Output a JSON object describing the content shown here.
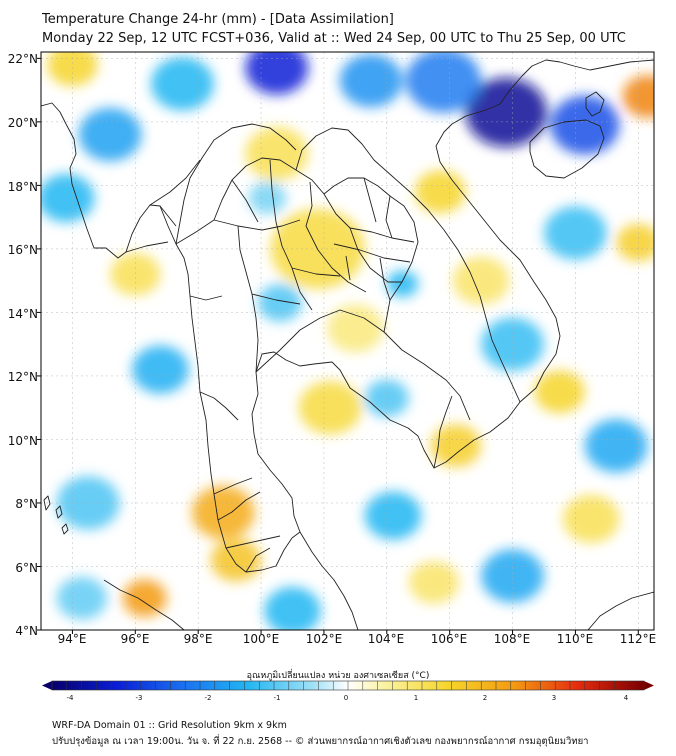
{
  "header": {
    "title_line1": "Temperature Change 24-hr (mm) - [Data Assimilation]",
    "title_line2": "Monday 22 Sep, 12 UTC FCST+036, Valid at :: Wed 24 Sep, 00 UTC to Thu 25 Sep, 00 UTC"
  },
  "map": {
    "lat_labels": [
      "22°N",
      "20°N",
      "18°N",
      "16°N",
      "14°N",
      "12°N",
      "10°N",
      "8°N",
      "6°N",
      "4°N"
    ],
    "lon_labels": [
      "94°E",
      "96°E",
      "98°E",
      "100°E",
      "102°E",
      "104°E",
      "106°E",
      "108°E",
      "110°E",
      "112°E"
    ],
    "lat_values": [
      22,
      20,
      18,
      16,
      14,
      12,
      10,
      8,
      6,
      4
    ],
    "lon_values": [
      94,
      96,
      98,
      100,
      102,
      104,
      106,
      108,
      110,
      112
    ],
    "extent": {
      "lon_min": 93,
      "lon_max": 112.5,
      "lat_min": 4,
      "lat_max": 22.2
    },
    "anomalies": [
      {
        "lon": 100.5,
        "lat": 21.7,
        "value": -3.0,
        "spread": 1.0
      },
      {
        "lon": 107.8,
        "lat": 20.3,
        "value": -3.6,
        "spread": 1.3
      },
      {
        "lon": 110.3,
        "lat": 19.9,
        "value": -2.4,
        "spread": 1.1
      },
      {
        "lon": 105.8,
        "lat": 21.3,
        "value": -1.8,
        "spread": 1.2
      },
      {
        "lon": 103.5,
        "lat": 21.3,
        "value": -1.5,
        "spread": 1.0
      },
      {
        "lon": 95.2,
        "lat": 19.6,
        "value": -1.3,
        "spread": 1.0
      },
      {
        "lon": 93.8,
        "lat": 17.6,
        "value": -1.0,
        "spread": 0.9
      },
      {
        "lon": 97.5,
        "lat": 21.2,
        "value": -1.0,
        "spread": 1.0
      },
      {
        "lon": 96.8,
        "lat": 12.2,
        "value": -1.1,
        "spread": 0.9
      },
      {
        "lon": 104.5,
        "lat": 14.9,
        "value": -1.0,
        "spread": 0.5
      },
      {
        "lon": 100.6,
        "lat": 14.3,
        "value": -0.8,
        "spread": 0.7
      },
      {
        "lon": 104.0,
        "lat": 11.3,
        "value": -0.8,
        "spread": 0.7
      },
      {
        "lon": 108.0,
        "lat": 13.0,
        "value": -0.9,
        "spread": 1.0
      },
      {
        "lon": 110.0,
        "lat": 16.5,
        "value": -0.9,
        "spread": 1.0
      },
      {
        "lon": 111.3,
        "lat": 9.8,
        "value": -1.2,
        "spread": 1.0
      },
      {
        "lon": 108.0,
        "lat": 5.7,
        "value": -1.2,
        "spread": 1.0
      },
      {
        "lon": 104.2,
        "lat": 7.6,
        "value": -1.0,
        "spread": 0.9
      },
      {
        "lon": 94.5,
        "lat": 8.0,
        "value": -0.8,
        "spread": 1.0
      },
      {
        "lon": 101.0,
        "lat": 4.6,
        "value": -1.0,
        "spread": 0.9
      },
      {
        "lon": 94.3,
        "lat": 5.0,
        "value": -0.7,
        "spread": 0.8
      },
      {
        "lon": 100.2,
        "lat": 17.6,
        "value": -0.6,
        "spread": 0.6
      },
      {
        "lon": 112.3,
        "lat": 20.8,
        "value": 2.2,
        "spread": 0.8
      },
      {
        "lon": 112.0,
        "lat": 16.2,
        "value": 1.1,
        "spread": 0.7
      },
      {
        "lon": 105.7,
        "lat": 17.8,
        "value": 1.0,
        "spread": 0.8
      },
      {
        "lon": 101.8,
        "lat": 16.0,
        "value": 0.9,
        "spread": 1.5
      },
      {
        "lon": 100.5,
        "lat": 19.0,
        "value": 0.8,
        "spread": 1.0
      },
      {
        "lon": 94.0,
        "lat": 21.8,
        "value": 1.0,
        "spread": 0.8
      },
      {
        "lon": 96.0,
        "lat": 15.2,
        "value": 0.8,
        "spread": 0.8
      },
      {
        "lon": 98.8,
        "lat": 7.7,
        "value": 1.7,
        "spread": 1.0
      },
      {
        "lon": 99.2,
        "lat": 6.2,
        "value": 1.3,
        "spread": 0.8
      },
      {
        "lon": 96.3,
        "lat": 5.0,
        "value": 2.0,
        "spread": 0.7
      },
      {
        "lon": 102.2,
        "lat": 11.0,
        "value": 0.9,
        "spread": 1.0
      },
      {
        "lon": 106.2,
        "lat": 9.8,
        "value": 1.1,
        "spread": 0.8
      },
      {
        "lon": 109.5,
        "lat": 11.5,
        "value": 1.0,
        "spread": 0.8
      },
      {
        "lon": 110.5,
        "lat": 7.5,
        "value": 0.8,
        "spread": 0.9
      },
      {
        "lon": 105.5,
        "lat": 5.5,
        "value": 0.7,
        "spread": 0.8
      },
      {
        "lon": 103.0,
        "lat": 13.5,
        "value": 0.6,
        "spread": 0.9
      },
      {
        "lon": 107.0,
        "lat": 15.0,
        "value": 0.7,
        "spread": 0.9
      }
    ]
  },
  "colorbar": {
    "title": "อุณหภูมิเปลี่ยนแปลง หน่วย องศาเซลเซียส (°C)",
    "ticks": [
      "-4",
      "-3",
      "-2",
      "-1",
      "0",
      "1",
      "2",
      "3",
      "4"
    ],
    "tick_values": [
      -4,
      -3,
      -2,
      -1,
      0,
      1,
      2,
      3,
      4
    ],
    "min": -4,
    "max": 4
  },
  "footer": {
    "line1": "WRF-DA Domain 01 :: Grid Resolution 9km x 9km",
    "line2": "ปรับปรุงข้อมูล ณ เวลา 19:00น. วัน จ. ที่ 22 ก.ย. 2568 -- © ส่วนพยากรณ์อากาศเชิงตัวเลข กองพยากรณ์อากาศ กรมอุตุนิยมวิทยา"
  },
  "colors": {
    "border": "#000000",
    "grid": "#aaaaaa",
    "coast": "#222222"
  }
}
